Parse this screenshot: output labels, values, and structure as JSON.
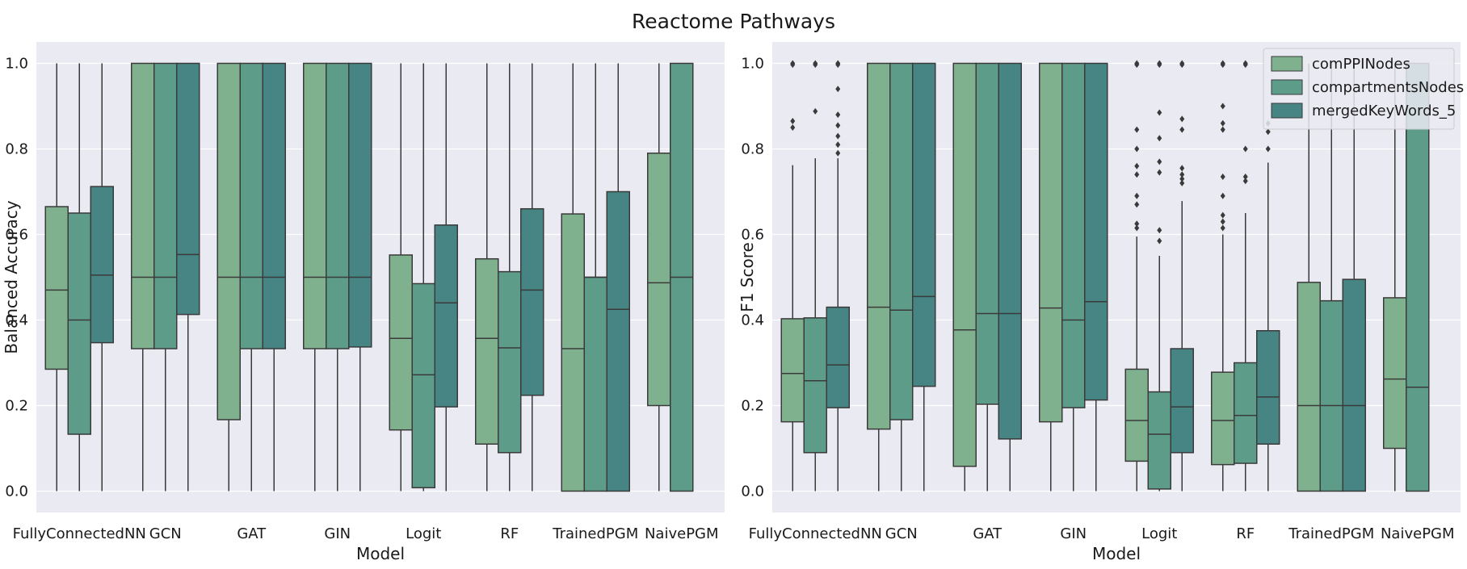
{
  "figure": {
    "title": "Reactome Pathways"
  },
  "colors": {
    "background": "#eaeaf2",
    "grid": "#ffffff",
    "line": "#3a3a3a",
    "series": [
      "#80b18e",
      "#5e9c8a",
      "#468584"
    ]
  },
  "chart_data": [
    {
      "type": "box",
      "xlabel": "Model",
      "ylabel": "Balanced Accuracy",
      "ylim": [
        -0.05,
        1.05
      ],
      "yticks": [
        "0.0",
        "0.2",
        "0.4",
        "0.6",
        "0.8",
        "1.0"
      ],
      "grid": true,
      "categories": [
        "FullyConnectedNN",
        "GCN",
        "GAT",
        "GIN",
        "Logit",
        "RF",
        "TrainedPGM",
        "NaivePGM"
      ],
      "series": [
        {
          "name": "comPPINodes",
          "boxes": [
            {
              "min": 0,
              "q1": 0.285,
              "median": 0.47,
              "q3": 0.665,
              "max": 1.0,
              "outliers": []
            },
            {
              "min": 0,
              "q1": 0.333,
              "median": 0.5,
              "q3": 1.0,
              "max": 1.0,
              "outliers": []
            },
            {
              "min": 0,
              "q1": 0.167,
              "median": 0.5,
              "q3": 1.0,
              "max": 1.0,
              "outliers": []
            },
            {
              "min": 0,
              "q1": 0.333,
              "median": 0.5,
              "q3": 1.0,
              "max": 1.0,
              "outliers": []
            },
            {
              "min": 0,
              "q1": 0.143,
              "median": 0.357,
              "q3": 0.552,
              "max": 1.0,
              "outliers": []
            },
            {
              "min": 0,
              "q1": 0.11,
              "median": 0.357,
              "q3": 0.543,
              "max": 1.0,
              "outliers": []
            },
            {
              "min": 0,
              "q1": 0.0,
              "median": 0.333,
              "q3": 0.648,
              "max": 1.0,
              "outliers": []
            },
            {
              "min": 0,
              "q1": 0.2,
              "median": 0.487,
              "q3": 0.79,
              "max": 1.0,
              "outliers": []
            }
          ]
        },
        {
          "name": "compartmentsNodes",
          "boxes": [
            {
              "min": 0,
              "q1": 0.133,
              "median": 0.4,
              "q3": 0.65,
              "max": 1.0,
              "outliers": []
            },
            {
              "min": 0,
              "q1": 0.333,
              "median": 0.5,
              "q3": 1.0,
              "max": 1.0,
              "outliers": []
            },
            {
              "min": 0,
              "q1": 0.333,
              "median": 0.5,
              "q3": 1.0,
              "max": 1.0,
              "outliers": []
            },
            {
              "min": 0,
              "q1": 0.333,
              "median": 0.5,
              "q3": 1.0,
              "max": 1.0,
              "outliers": []
            },
            {
              "min": 0,
              "q1": 0.008,
              "median": 0.272,
              "q3": 0.485,
              "max": 1.0,
              "outliers": []
            },
            {
              "min": 0,
              "q1": 0.09,
              "median": 0.335,
              "q3": 0.513,
              "max": 1.0,
              "outliers": []
            },
            {
              "min": 0,
              "q1": 0.0,
              "median": 0.5,
              "q3": 0.5,
              "max": 1.0,
              "outliers": []
            },
            {
              "min": 0,
              "q1": 0.0,
              "median": 0.5,
              "q3": 1.0,
              "max": 1.0,
              "outliers": []
            }
          ]
        },
        {
          "name": "mergedKeyWords_5",
          "boxes": [
            {
              "min": 0,
              "q1": 0.347,
              "median": 0.505,
              "q3": 0.712,
              "max": 1.0,
              "outliers": []
            },
            {
              "min": 0,
              "q1": 0.413,
              "median": 0.553,
              "q3": 1.0,
              "max": 1.0,
              "outliers": []
            },
            {
              "min": 0,
              "q1": 0.333,
              "median": 0.5,
              "q3": 1.0,
              "max": 1.0,
              "outliers": []
            },
            {
              "min": 0,
              "q1": 0.337,
              "median": 0.5,
              "q3": 1.0,
              "max": 1.0,
              "outliers": []
            },
            {
              "min": 0,
              "q1": 0.197,
              "median": 0.44,
              "q3": 0.622,
              "max": 1.0,
              "outliers": []
            },
            {
              "min": 0,
              "q1": 0.224,
              "median": 0.47,
              "q3": 0.66,
              "max": 1.0,
              "outliers": []
            },
            {
              "min": 0,
              "q1": 0.0,
              "median": 0.425,
              "q3": 0.7,
              "max": 1.0,
              "outliers": []
            },
            null
          ]
        }
      ]
    },
    {
      "type": "box",
      "xlabel": "Model",
      "ylabel": "F1 Score",
      "ylim": [
        -0.05,
        1.05
      ],
      "yticks": [
        "0.0",
        "0.2",
        "0.4",
        "0.6",
        "0.8",
        "1.0"
      ],
      "grid": true,
      "legend": {
        "position": "top-right",
        "entries": [
          "comPPINodes",
          "compartmentsNodes",
          "mergedKeyWords_5"
        ]
      },
      "categories": [
        "FullyConnectedNN",
        "GCN",
        "GAT",
        "GIN",
        "Logit",
        "RF",
        "TrainedPGM",
        "NaivePGM"
      ],
      "series": [
        {
          "name": "comPPINodes",
          "boxes": [
            {
              "min": 0,
              "q1": 0.162,
              "median": 0.275,
              "q3": 0.403,
              "max": 0.762,
              "outliers": [
                0.85,
                0.865,
                0.997,
                1.0
              ]
            },
            {
              "min": 0,
              "q1": 0.145,
              "median": 0.43,
              "q3": 1.0,
              "max": 1.0,
              "outliers": []
            },
            {
              "min": 0,
              "q1": 0.058,
              "median": 0.377,
              "q3": 1.0,
              "max": 1.0,
              "outliers": []
            },
            {
              "min": 0,
              "q1": 0.162,
              "median": 0.428,
              "q3": 1.0,
              "max": 1.0,
              "outliers": []
            },
            {
              "min": 0,
              "q1": 0.07,
              "median": 0.165,
              "q3": 0.285,
              "max": 0.595,
              "outliers": [
                0.615,
                0.625,
                0.67,
                0.69,
                0.74,
                0.76,
                0.8,
                0.845,
                0.997,
                1.0
              ]
            },
            {
              "min": 0,
              "q1": 0.062,
              "median": 0.165,
              "q3": 0.278,
              "max": 0.6,
              "outliers": [
                0.615,
                0.63,
                0.645,
                0.69,
                0.735,
                0.845,
                0.86,
                0.9,
                0.997,
                1.0
              ]
            },
            {
              "min": 0,
              "q1": 0.0,
              "median": 0.2,
              "q3": 0.488,
              "max": 1.0,
              "outliers": []
            },
            {
              "min": 0,
              "q1": 0.1,
              "median": 0.262,
              "q3": 0.452,
              "max": 1.0,
              "outliers": []
            }
          ]
        },
        {
          "name": "compartmentsNodes",
          "boxes": [
            {
              "min": 0,
              "q1": 0.09,
              "median": 0.258,
              "q3": 0.405,
              "max": 0.778,
              "outliers": [
                0.888,
                0.997,
                1.0
              ]
            },
            {
              "min": 0,
              "q1": 0.167,
              "median": 0.423,
              "q3": 1.0,
              "max": 1.0,
              "outliers": []
            },
            {
              "min": 0,
              "q1": 0.203,
              "median": 0.415,
              "q3": 1.0,
              "max": 1.0,
              "outliers": []
            },
            {
              "min": 0,
              "q1": 0.195,
              "median": 0.4,
              "q3": 1.0,
              "max": 1.0,
              "outliers": []
            },
            {
              "min": 0,
              "q1": 0.005,
              "median": 0.133,
              "q3": 0.232,
              "max": 0.55,
              "outliers": [
                0.585,
                0.61,
                0.745,
                0.77,
                0.825,
                0.885,
                0.997,
                1.0
              ]
            },
            {
              "min": 0,
              "q1": 0.065,
              "median": 0.177,
              "q3": 0.3,
              "max": 0.65,
              "outliers": [
                0.725,
                0.735,
                0.8,
                0.997,
                1.0
              ]
            },
            {
              "min": 0,
              "q1": 0.0,
              "median": 0.2,
              "q3": 0.445,
              "max": 1.0,
              "outliers": []
            },
            {
              "min": 0,
              "q1": 0.0,
              "median": 0.243,
              "q3": 1.0,
              "max": 1.0,
              "outliers": []
            }
          ]
        },
        {
          "name": "mergedKeyWords_5",
          "boxes": [
            {
              "min": 0,
              "q1": 0.195,
              "median": 0.295,
              "q3": 0.43,
              "max": 0.778,
              "outliers": [
                0.79,
                0.81,
                0.83,
                0.855,
                0.88,
                0.94,
                0.997,
                1.0
              ]
            },
            {
              "min": 0,
              "q1": 0.245,
              "median": 0.455,
              "q3": 1.0,
              "max": 1.0,
              "outliers": []
            },
            {
              "min": 0,
              "q1": 0.122,
              "median": 0.415,
              "q3": 1.0,
              "max": 1.0,
              "outliers": []
            },
            {
              "min": 0,
              "q1": 0.213,
              "median": 0.443,
              "q3": 1.0,
              "max": 1.0,
              "outliers": []
            },
            {
              "min": 0,
              "q1": 0.09,
              "median": 0.197,
              "q3": 0.333,
              "max": 0.678,
              "outliers": [
                0.72,
                0.73,
                0.74,
                0.755,
                0.845,
                0.87,
                0.997,
                1.0
              ]
            },
            {
              "min": 0,
              "q1": 0.11,
              "median": 0.22,
              "q3": 0.375,
              "max": 0.768,
              "outliers": [
                0.8,
                0.84,
                0.86
              ]
            },
            {
              "min": 0,
              "q1": 0.0,
              "median": 0.2,
              "q3": 0.495,
              "max": 1.0,
              "outliers": []
            },
            null
          ]
        }
      ]
    }
  ]
}
